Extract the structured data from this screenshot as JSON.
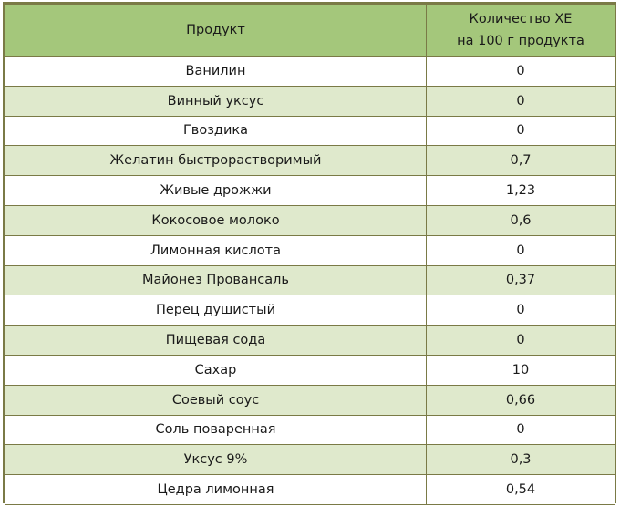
{
  "header": {
    "product": "Продукт",
    "xe_line1": "Количество ХЕ",
    "xe_line2": "на 100 г продукта"
  },
  "rows": [
    {
      "product": "Ванилин",
      "xe": "0"
    },
    {
      "product": "Винный уксус",
      "xe": "0"
    },
    {
      "product": "Гвоздика",
      "xe": "0"
    },
    {
      "product": "Желатин быстрорастворимый",
      "xe": "0,7"
    },
    {
      "product": "Живые дрожжи",
      "xe": "1,23"
    },
    {
      "product": "Кокосовое молоко",
      "xe": "0,6"
    },
    {
      "product": "Лимонная кислота",
      "xe": "0"
    },
    {
      "product": "Майонез Провансаль",
      "xe": "0,37"
    },
    {
      "product": "Перец душистый",
      "xe": "0"
    },
    {
      "product": "Пищевая сода",
      "xe": "0"
    },
    {
      "product": "Сахар",
      "xe": "10"
    },
    {
      "product": "Соевый соус",
      "xe": "0,66"
    },
    {
      "product": "Соль поваренная",
      "xe": "0"
    },
    {
      "product": "Уксус 9%",
      "xe": "0,3"
    },
    {
      "product": "Цедра лимонная",
      "xe": "0,54"
    }
  ]
}
